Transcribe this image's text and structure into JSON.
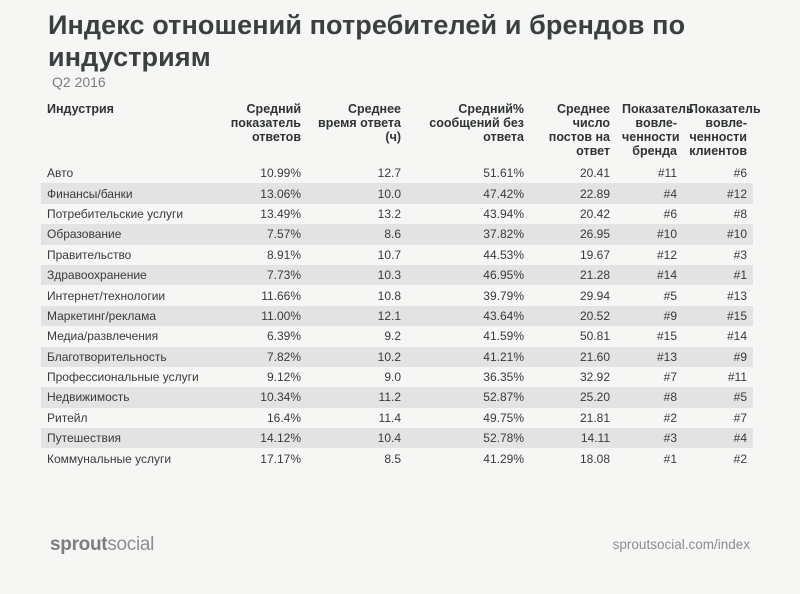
{
  "title": "Индекс отношений потребителей и брендов по индустриям",
  "subtitle": "Q2 2016",
  "table": {
    "headers": {
      "industry": "Индустрия",
      "response_rate": "Средний показатель ответов",
      "response_time": "Среднее время ответа (ч)",
      "unanswered": "Средний% сообщений без ответа",
      "posts_per_reply": "Среднее число постов на ответ",
      "brand_engagement": "Показатель вовле-ченности бренда",
      "customer_engagement": "Показатель вовле-ченности клиентов"
    },
    "rows": [
      {
        "industry": "Авто",
        "response_rate": "10.99%",
        "response_time": "12.7",
        "unanswered": "51.61%",
        "posts_per_reply": "20.41",
        "brand_engagement": "#11",
        "customer_engagement": "#6"
      },
      {
        "industry": "Финансы/банки",
        "response_rate": "13.06%",
        "response_time": "10.0",
        "unanswered": "47.42%",
        "posts_per_reply": "22.89",
        "brand_engagement": "#4",
        "customer_engagement": "#12"
      },
      {
        "industry": "Потребительские услуги",
        "response_rate": "13.49%",
        "response_time": "13.2",
        "unanswered": "43.94%",
        "posts_per_reply": "20.42",
        "brand_engagement": "#6",
        "customer_engagement": "#8"
      },
      {
        "industry": "Образование",
        "response_rate": "7.57%",
        "response_time": "8.6",
        "unanswered": "37.82%",
        "posts_per_reply": "26.95",
        "brand_engagement": "#10",
        "customer_engagement": "#10"
      },
      {
        "industry": "Правительство",
        "response_rate": "8.91%",
        "response_time": "10.7",
        "unanswered": "44.53%",
        "posts_per_reply": "19.67",
        "brand_engagement": "#12",
        "customer_engagement": "#3"
      },
      {
        "industry": "Здравоохранение",
        "response_rate": "7.73%",
        "response_time": "10.3",
        "unanswered": "46.95%",
        "posts_per_reply": "21.28",
        "brand_engagement": "#14",
        "customer_engagement": "#1"
      },
      {
        "industry": "Интернет/технологии",
        "response_rate": "11.66%",
        "response_time": "10.8",
        "unanswered": "39.79%",
        "posts_per_reply": "29.94",
        "brand_engagement": "#5",
        "customer_engagement": "#13"
      },
      {
        "industry": "Маркетинг/реклама",
        "response_rate": "11.00%",
        "response_time": "12.1",
        "unanswered": "43.64%",
        "posts_per_reply": "20.52",
        "brand_engagement": "#9",
        "customer_engagement": "#15"
      },
      {
        "industry": "Медиа/развлечения",
        "response_rate": "6.39%",
        "response_time": "9.2",
        "unanswered": "41.59%",
        "posts_per_reply": "50.81",
        "brand_engagement": "#15",
        "customer_engagement": "#14"
      },
      {
        "industry": "Благотворительность",
        "response_rate": "7.82%",
        "response_time": "10.2",
        "unanswered": "41.21%",
        "posts_per_reply": "21.60",
        "brand_engagement": "#13",
        "customer_engagement": "#9"
      },
      {
        "industry": "Профессиональные услуги",
        "response_rate": "9.12%",
        "response_time": "9.0",
        "unanswered": "36.35%",
        "posts_per_reply": "32.92",
        "brand_engagement": "#7",
        "customer_engagement": "#11"
      },
      {
        "industry": "Недвижимость",
        "response_rate": "10.34%",
        "response_time": "11.2",
        "unanswered": "52.87%",
        "posts_per_reply": "25.20",
        "brand_engagement": "#8",
        "customer_engagement": "#5"
      },
      {
        "industry": "Ритейл",
        "response_rate": "16.4%",
        "response_time": "11.4",
        "unanswered": "49.75%",
        "posts_per_reply": "21.81",
        "brand_engagement": "#2",
        "customer_engagement": "#7"
      },
      {
        "industry": "Путешествия",
        "response_rate": "14.12%",
        "response_time": "10.4",
        "unanswered": "52.78%",
        "posts_per_reply": "14.11",
        "brand_engagement": "#3",
        "customer_engagement": "#4"
      },
      {
        "industry": "Коммунальные услуги",
        "response_rate": "17.17%",
        "response_time": "8.5",
        "unanswered": "41.29%",
        "posts_per_reply": "18.08",
        "brand_engagement": "#1",
        "customer_engagement": "#2"
      }
    ]
  },
  "footer": {
    "logo_part1": "sprout",
    "logo_part2": "social",
    "url": "sproutsocial.com/index"
  },
  "colors": {
    "background": "#f6f6f5",
    "stripe": "#e3e3e3",
    "title": "#3a3f41",
    "muted": "#8a8d8f"
  }
}
